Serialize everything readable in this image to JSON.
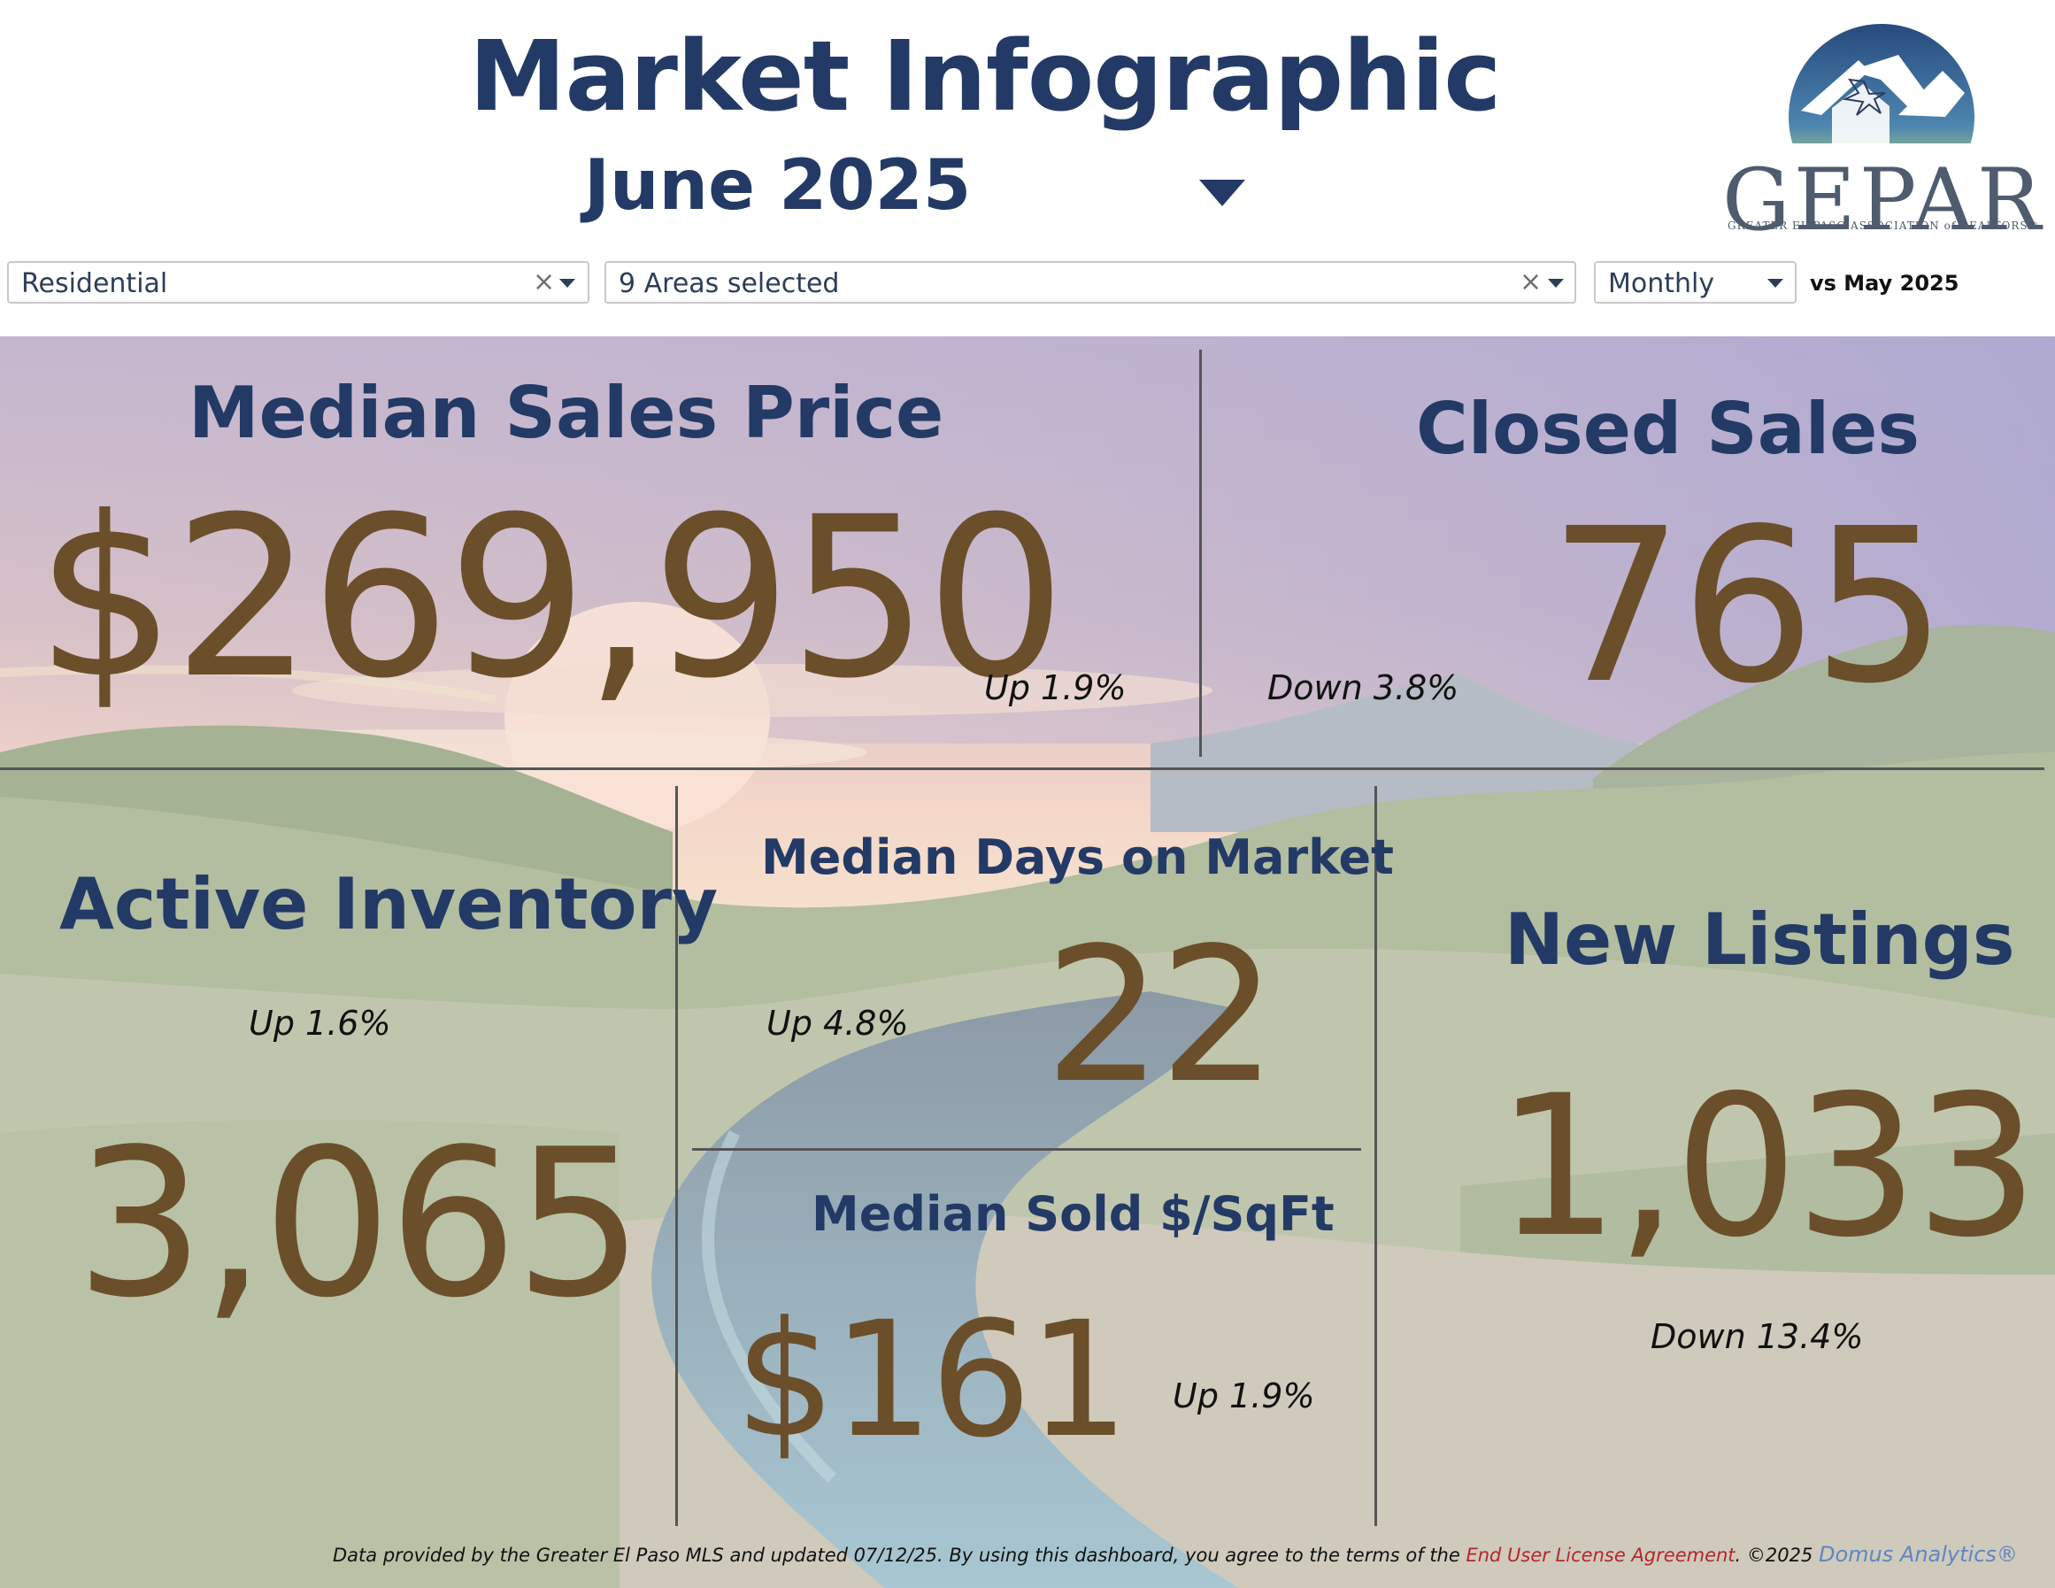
{
  "header": {
    "title": "Market Infographic",
    "period_selector": {
      "value": "June 2025",
      "icon": "caret-down-icon"
    }
  },
  "logo": {
    "word": "GEPAR",
    "subtitle": "GREATER EL PASO ASSOCIATION of REALTORS®"
  },
  "filters": {
    "property_type": {
      "value": "Residential",
      "clear_icon": "×",
      "dropdown_icon": "chevron-down-icon"
    },
    "areas": {
      "value": "9 Areas selected",
      "clear_icon": "×",
      "dropdown_icon": "chevron-down-icon"
    },
    "interval": {
      "value": "Monthly",
      "dropdown_icon": "chevron-down-icon"
    },
    "comparison_label": "vs May 2025"
  },
  "metrics": {
    "median_sales_price": {
      "title": "Median Sales Price",
      "value": "$269,950",
      "change": "Up 1.9%"
    },
    "closed_sales": {
      "title": "Closed Sales",
      "value": "765",
      "change": "Down 3.8%"
    },
    "active_inventory": {
      "title": "Active Inventory",
      "value": "3,065",
      "change": "Up 1.6%"
    },
    "median_days_on_market": {
      "title": "Median Days on Market",
      "value": "22",
      "change": "Up 4.8%"
    },
    "median_sold_per_sqft": {
      "title": "Median Sold $/SqFt",
      "value": "$161",
      "change": "Up 1.9%"
    },
    "new_listings": {
      "title": "New Listings",
      "value": "1,033",
      "change": "Down 13.4%"
    }
  },
  "colors": {
    "title": "#233a66",
    "value": "#6b4f2a",
    "link_eula": "#b3262d",
    "link_domus": "#5f86c4"
  },
  "footer": {
    "text": "Data provided by the Greater El Paso MLS and updated 07/12/25.  By using this dashboard, you agree to the terms of the",
    "eula_link": "End User License Agreement",
    "copyright": ".  ©2025",
    "domus_link": "Domus Analytics®"
  }
}
